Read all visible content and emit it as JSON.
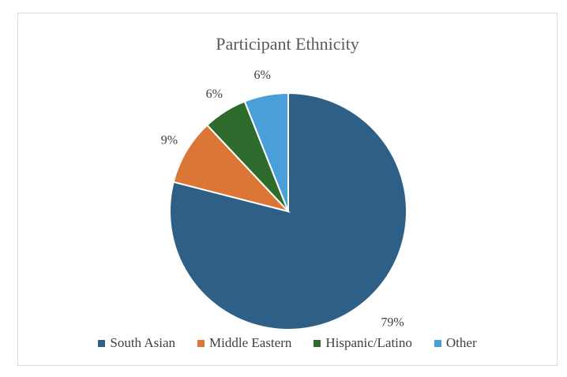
{
  "chart_data": {
    "type": "pie",
    "title": "Participant Ethnicity",
    "slices": [
      {
        "label": "South Asian",
        "value": 79,
        "display": "79%",
        "color": "#2e5f86"
      },
      {
        "label": "Middle Eastern",
        "value": 9,
        "display": "9%",
        "color": "#db7636"
      },
      {
        "label": "Hispanic/Latino",
        "value": 6,
        "display": "6%",
        "color": "#2f6b2c"
      },
      {
        "label": "Other",
        "value": 6,
        "display": "6%",
        "color": "#4a9fd9"
      }
    ],
    "legend_position": "bottom"
  }
}
